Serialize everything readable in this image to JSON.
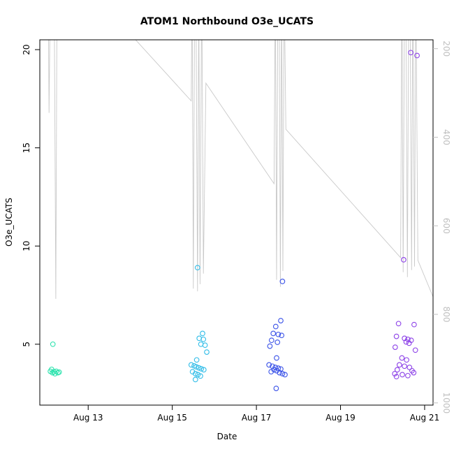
{
  "header": {
    "title": "ATOM1 Northbound O3e_UCATS"
  },
  "axes": {
    "xlabel": "Date",
    "ylabel": "O3e_UCATS"
  },
  "chart_data": {
    "type": "scatter",
    "title": "ATOM1 Northbound O3e_UCATS",
    "xlabel": "Date",
    "ylabel": "O3e_UCATS",
    "grid": false,
    "legend": "none",
    "xlim": [
      11.85,
      21.2
    ],
    "ylim": [
      1.9,
      20.5
    ],
    "x_ticks": [
      {
        "v": 13,
        "label": "Aug 13"
      },
      {
        "v": 15,
        "label": "Aug 15"
      },
      {
        "v": 17,
        "label": "Aug 17"
      },
      {
        "v": 19,
        "label": "Aug 19"
      },
      {
        "v": 21,
        "label": "Aug 21"
      }
    ],
    "y_ticks": [
      {
        "v": 5,
        "label": "5"
      },
      {
        "v": 10,
        "label": "10"
      },
      {
        "v": 15,
        "label": "15"
      },
      {
        "v": 20,
        "label": "20"
      }
    ],
    "right_axis": {
      "lim": [
        180,
        1005
      ],
      "reversed": true,
      "color": "#c0c0c0",
      "ticks": [
        {
          "v": 200,
          "label": "200"
        },
        {
          "v": 400,
          "label": "400"
        },
        {
          "v": 600,
          "label": "600"
        },
        {
          "v": 800,
          "label": "800"
        },
        {
          "v": 1000,
          "label": "1000"
        }
      ]
    },
    "pressure_trace": {
      "name": "pressure-altitude-trace",
      "color": "#c9c9c9",
      "points": [
        [
          11.9,
          40
        ],
        [
          11.93,
          125
        ],
        [
          11.95,
          40
        ],
        [
          11.98,
          135
        ],
        [
          12.0,
          40
        ],
        [
          12.05,
          40
        ],
        [
          12.07,
          345
        ],
        [
          12.09,
          150
        ],
        [
          12.11,
          40
        ],
        [
          12.19,
          40
        ],
        [
          12.23,
          765
        ],
        [
          12.26,
          40
        ],
        [
          12.32,
          40
        ],
        [
          14.05,
          172
        ],
        [
          15.45,
          318
        ],
        [
          15.47,
          40
        ],
        [
          15.5,
          742
        ],
        [
          15.53,
          85
        ],
        [
          15.56,
          40
        ],
        [
          15.6,
          748
        ],
        [
          15.63,
          95
        ],
        [
          15.66,
          732
        ],
        [
          15.7,
          40
        ],
        [
          15.74,
          708
        ],
        [
          15.8,
          278
        ],
        [
          17.42,
          505
        ],
        [
          17.45,
          40
        ],
        [
          17.48,
          722
        ],
        [
          17.51,
          95
        ],
        [
          17.54,
          40
        ],
        [
          17.57,
          738
        ],
        [
          17.6,
          85
        ],
        [
          17.63,
          702
        ],
        [
          17.66,
          40
        ],
        [
          17.7,
          382
        ],
        [
          20.43,
          672
        ],
        [
          20.46,
          40
        ],
        [
          20.49,
          705
        ],
        [
          20.52,
          85
        ],
        [
          20.55,
          40
        ],
        [
          20.59,
          716
        ],
        [
          20.62,
          95
        ],
        [
          20.65,
          40
        ],
        [
          20.69,
          700
        ],
        [
          20.72,
          40
        ],
        [
          20.76,
          692
        ],
        [
          20.79,
          40
        ],
        [
          20.84,
          678
        ],
        [
          21.22,
          765
        ]
      ]
    },
    "series": [
      {
        "name": "flight-aug12",
        "color": "#2de3ae",
        "points": [
          [
            12.16,
            5.0
          ],
          [
            12.1,
            3.62
          ],
          [
            12.13,
            3.72
          ],
          [
            12.15,
            3.55
          ],
          [
            12.18,
            3.6
          ],
          [
            12.21,
            3.5
          ],
          [
            12.24,
            3.62
          ],
          [
            12.28,
            3.55
          ],
          [
            12.31,
            3.58
          ]
        ]
      },
      {
        "name": "flight-aug15",
        "color": "#31bde8",
        "points": [
          [
            15.6,
            8.9
          ],
          [
            15.72,
            5.55
          ],
          [
            15.64,
            5.3
          ],
          [
            15.74,
            5.25
          ],
          [
            15.68,
            5.0
          ],
          [
            15.78,
            4.95
          ],
          [
            15.82,
            4.6
          ],
          [
            15.58,
            4.2
          ],
          [
            15.45,
            3.95
          ],
          [
            15.52,
            3.9
          ],
          [
            15.57,
            3.85
          ],
          [
            15.63,
            3.8
          ],
          [
            15.69,
            3.75
          ],
          [
            15.75,
            3.7
          ],
          [
            15.48,
            3.6
          ],
          [
            15.55,
            3.5
          ],
          [
            15.61,
            3.45
          ],
          [
            15.67,
            3.38
          ],
          [
            15.55,
            3.2
          ]
        ]
      },
      {
        "name": "flight-aug17",
        "color": "#3a52e8",
        "points": [
          [
            17.62,
            8.2
          ],
          [
            17.58,
            6.2
          ],
          [
            17.46,
            5.9
          ],
          [
            17.4,
            5.55
          ],
          [
            17.52,
            5.5
          ],
          [
            17.6,
            5.45
          ],
          [
            17.36,
            5.2
          ],
          [
            17.5,
            5.1
          ],
          [
            17.32,
            4.9
          ],
          [
            17.48,
            4.3
          ],
          [
            17.3,
            3.95
          ],
          [
            17.38,
            3.88
          ],
          [
            17.45,
            3.82
          ],
          [
            17.52,
            3.78
          ],
          [
            17.58,
            3.74
          ],
          [
            17.42,
            3.7
          ],
          [
            17.48,
            3.65
          ],
          [
            17.35,
            3.6
          ],
          [
            17.55,
            3.55
          ],
          [
            17.62,
            3.5
          ],
          [
            17.68,
            3.45
          ],
          [
            17.47,
            2.75
          ]
        ]
      },
      {
        "name": "flight-aug20",
        "color": "#8d42e8",
        "points": [
          [
            20.67,
            19.85
          ],
          [
            20.82,
            19.7
          ],
          [
            20.5,
            9.3
          ],
          [
            20.38,
            6.05
          ],
          [
            20.75,
            6.0
          ],
          [
            20.33,
            5.4
          ],
          [
            20.52,
            5.3
          ],
          [
            20.6,
            5.25
          ],
          [
            20.68,
            5.2
          ],
          [
            20.56,
            5.12
          ],
          [
            20.63,
            5.05
          ],
          [
            20.3,
            4.85
          ],
          [
            20.78,
            4.7
          ],
          [
            20.46,
            4.3
          ],
          [
            20.57,
            4.2
          ],
          [
            20.4,
            3.95
          ],
          [
            20.52,
            3.88
          ],
          [
            20.64,
            3.82
          ],
          [
            20.35,
            3.7
          ],
          [
            20.7,
            3.65
          ],
          [
            20.74,
            3.55
          ],
          [
            20.29,
            3.5
          ],
          [
            20.47,
            3.45
          ],
          [
            20.6,
            3.4
          ],
          [
            20.33,
            3.35
          ]
        ]
      }
    ]
  },
  "style": {
    "box_color": "#000000",
    "marker_radius": 3.3
  }
}
